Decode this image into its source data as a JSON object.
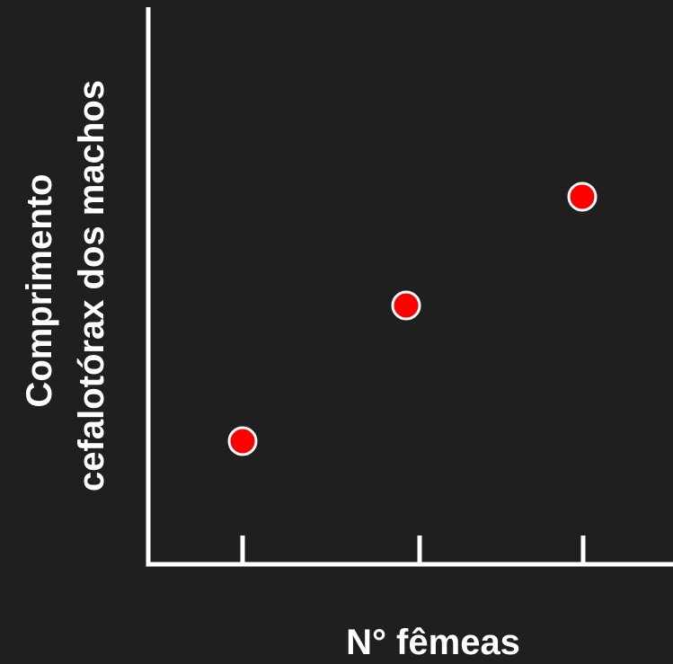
{
  "chart_data": {
    "type": "scatter",
    "title": "",
    "xlabel": "N° fêmeas",
    "ylabel_lines": [
      "Comprimento",
      "cefalotórax dos machos"
    ],
    "x_ticks": [
      1,
      2,
      3
    ],
    "x": [
      1,
      2,
      3
    ],
    "y": [
      1,
      2.1,
      3
    ],
    "xlim": [
      0.5,
      3.5
    ],
    "ylim": [
      0,
      4
    ],
    "grid": false,
    "legend": "none",
    "colors": {
      "background": "#1f1f1f",
      "axis": "#ffffff",
      "marker_fill": "#ff0000",
      "marker_stroke": "#ffffff",
      "text": "#ffffff"
    }
  }
}
